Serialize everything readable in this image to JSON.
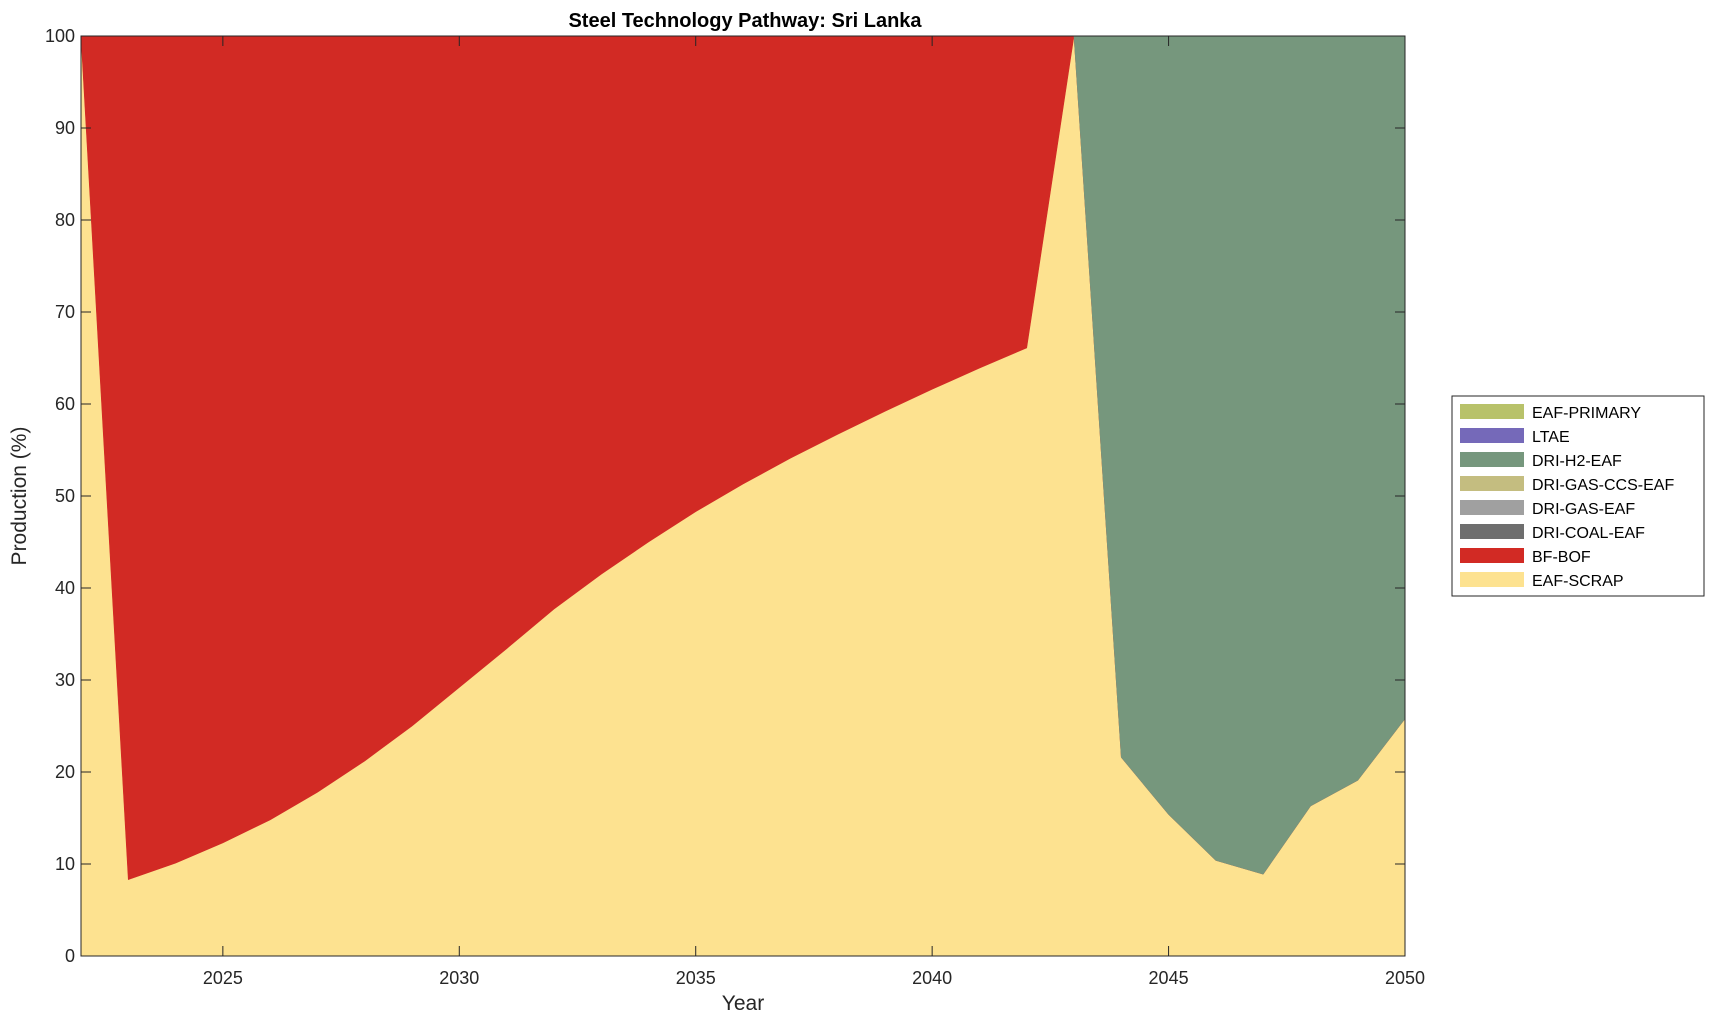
{
  "chart_data": {
    "type": "area",
    "stacked": true,
    "title": "Steel Technology Pathway: Sri Lanka",
    "xlabel": "Year",
    "ylabel": "Production (%)",
    "xlim": [
      2022,
      2050
    ],
    "ylim": [
      0,
      100
    ],
    "xticks": [
      2025,
      2030,
      2035,
      2040,
      2045,
      2050
    ],
    "yticks": [
      0,
      10,
      20,
      30,
      40,
      50,
      60,
      70,
      80,
      90,
      100
    ],
    "grid": false,
    "legend_position": "right",
    "x": [
      2022,
      2023,
      2024,
      2025,
      2026,
      2027,
      2028,
      2029,
      2030,
      2031,
      2032,
      2033,
      2034,
      2035,
      2036,
      2037,
      2038,
      2039,
      2040,
      2041,
      2042,
      2043,
      2044,
      2045,
      2046,
      2047,
      2048,
      2049,
      2050
    ],
    "series": [
      {
        "name": "EAF-SCRAP",
        "color": "#fde290",
        "values": [
          100,
          8.3,
          10.1,
          12.3,
          14.8,
          17.8,
          21.2,
          25.0,
          29.2,
          33.4,
          37.7,
          41.5,
          45.0,
          48.3,
          51.3,
          54.1,
          56.7,
          59.2,
          61.6,
          63.9,
          66.1,
          100,
          21.6,
          15.4,
          10.4,
          8.9,
          16.3,
          19.1,
          25.8
        ]
      },
      {
        "name": "BF-BOF",
        "color": "#d22a24",
        "values": [
          0,
          91.7,
          89.9,
          87.7,
          85.2,
          82.2,
          78.8,
          75.0,
          70.8,
          66.6,
          62.3,
          58.5,
          55.0,
          51.7,
          48.7,
          45.9,
          43.3,
          40.8,
          38.4,
          36.1,
          33.9,
          0,
          0,
          0,
          0,
          0,
          0,
          0,
          0
        ]
      },
      {
        "name": "DRI-COAL-EAF",
        "color": "#6e6e6e",
        "values": [
          0,
          0,
          0,
          0,
          0,
          0,
          0,
          0,
          0,
          0,
          0,
          0,
          0,
          0,
          0,
          0,
          0,
          0,
          0,
          0,
          0,
          0,
          0,
          0,
          0,
          0,
          0,
          0,
          0
        ]
      },
      {
        "name": "DRI-GAS-EAF",
        "color": "#a0a0a0",
        "values": [
          0,
          0,
          0,
          0,
          0,
          0,
          0,
          0,
          0,
          0,
          0,
          0,
          0,
          0,
          0,
          0,
          0,
          0,
          0,
          0,
          0,
          0,
          0,
          0,
          0,
          0,
          0,
          0,
          0
        ]
      },
      {
        "name": "DRI-GAS-CCS-EAF",
        "color": "#c4bd80",
        "values": [
          0,
          0,
          0,
          0,
          0,
          0,
          0,
          0,
          0,
          0,
          0,
          0,
          0,
          0,
          0,
          0,
          0,
          0,
          0,
          0,
          0,
          0,
          0,
          0,
          0,
          0,
          0,
          0,
          0
        ]
      },
      {
        "name": "DRI-H2-EAF",
        "color": "#76977d",
        "values": [
          0,
          0,
          0,
          0,
          0,
          0,
          0,
          0,
          0,
          0,
          0,
          0,
          0,
          0,
          0,
          0,
          0,
          0,
          0,
          0,
          0,
          0,
          78.4,
          84.6,
          89.6,
          91.1,
          83.7,
          80.9,
          74.2
        ]
      },
      {
        "name": "LTAE",
        "color": "#7569b9",
        "values": [
          0,
          0,
          0,
          0,
          0,
          0,
          0,
          0,
          0,
          0,
          0,
          0,
          0,
          0,
          0,
          0,
          0,
          0,
          0,
          0,
          0,
          0,
          0,
          0,
          0,
          0,
          0,
          0,
          0
        ]
      },
      {
        "name": "EAF-PRIMARY",
        "color": "#b8c26a",
        "values": [
          0,
          0,
          0,
          0,
          0,
          0,
          0,
          0,
          0,
          0,
          0,
          0,
          0,
          0,
          0,
          0,
          0,
          0,
          0,
          0,
          0,
          0,
          0,
          0,
          0,
          0,
          0,
          0,
          0
        ]
      }
    ],
    "legend_order": [
      "EAF-PRIMARY",
      "LTAE",
      "DRI-H2-EAF",
      "DRI-GAS-CCS-EAF",
      "DRI-GAS-EAF",
      "DRI-COAL-EAF",
      "BF-BOF",
      "EAF-SCRAP"
    ]
  }
}
